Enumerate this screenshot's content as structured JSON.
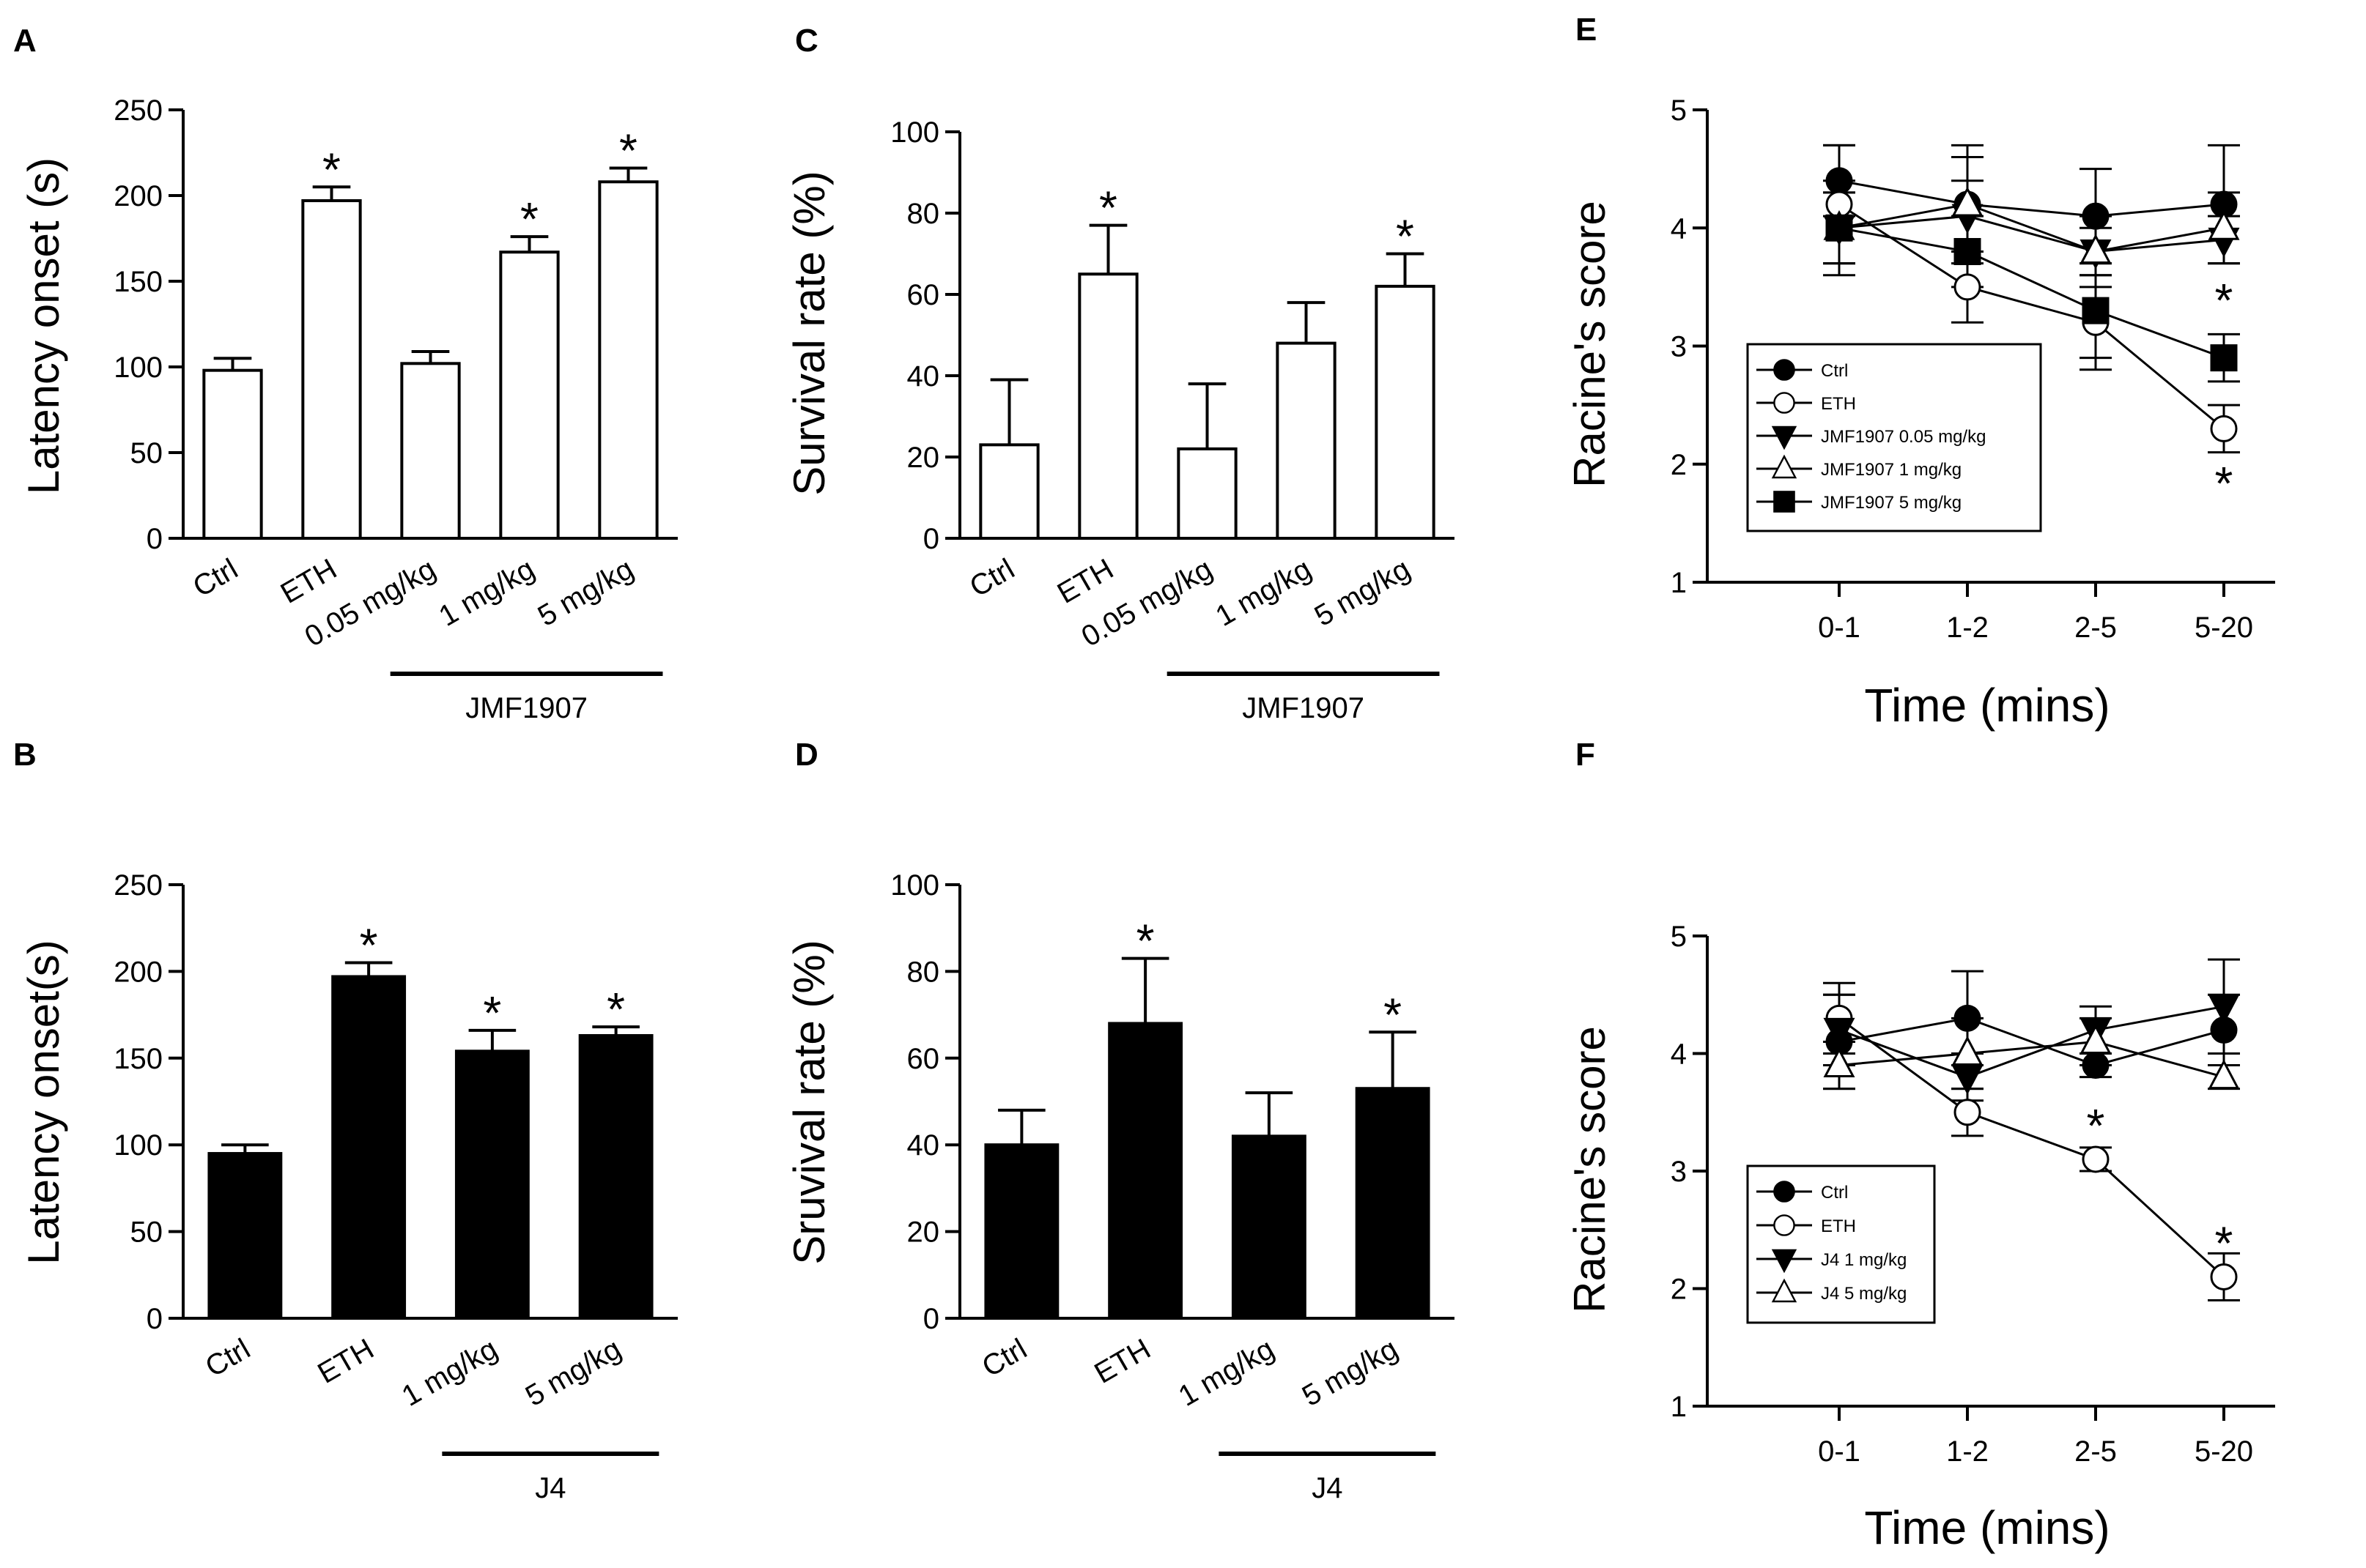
{
  "chart_data": [
    {
      "panel": "A",
      "type": "bar",
      "ylabel": "Latency onset (s)",
      "ylim": [
        0,
        250
      ],
      "yticks": [
        0,
        50,
        100,
        150,
        200,
        250
      ],
      "categories": [
        "Ctrl",
        "ETH",
        "0.05 mg/kg",
        "1 mg/kg",
        "5 mg/kg"
      ],
      "values": [
        98,
        197,
        102,
        167,
        208
      ],
      "errors": [
        7,
        8,
        7,
        9,
        8
      ],
      "significant": [
        false,
        true,
        false,
        true,
        true
      ],
      "group_label": "JMF1907",
      "group_span": [
        2,
        4
      ],
      "fill": "#ffffff"
    },
    {
      "panel": "B",
      "type": "bar",
      "ylabel": "Latency onset(s)",
      "ylim": [
        0,
        250
      ],
      "yticks": [
        0,
        50,
        100,
        150,
        200,
        250
      ],
      "categories": [
        "Ctrl",
        "ETH",
        "1 mg/kg",
        "5 mg/kg"
      ],
      "values": [
        95,
        197,
        154,
        163
      ],
      "errors": [
        5,
        8,
        12,
        5
      ],
      "significant": [
        false,
        true,
        true,
        true
      ],
      "group_label": "J4",
      "group_span": [
        2,
        3
      ],
      "fill": "#000000"
    },
    {
      "panel": "C",
      "type": "bar",
      "ylabel": "Survival rate (%)",
      "ylim": [
        0,
        100
      ],
      "yticks": [
        0,
        20,
        40,
        60,
        80,
        100
      ],
      "categories": [
        "Ctrl",
        "ETH",
        "0.05 mg/kg",
        "1 mg/kg",
        "5 mg/kg"
      ],
      "values": [
        23,
        65,
        22,
        48,
        62
      ],
      "errors": [
        16,
        12,
        16,
        10,
        8
      ],
      "significant": [
        false,
        true,
        false,
        false,
        true
      ],
      "group_label": "JMF1907",
      "group_span": [
        2,
        4
      ],
      "fill": "#ffffff"
    },
    {
      "panel": "D",
      "type": "bar",
      "ylabel": "Sruvival rate (%)",
      "ylim": [
        0,
        100
      ],
      "yticks": [
        0,
        20,
        40,
        60,
        80,
        100
      ],
      "categories": [
        "Ctrl",
        "ETH",
        "1 mg/kg",
        "5 mg/kg"
      ],
      "values": [
        40,
        68,
        42,
        53
      ],
      "errors": [
        8,
        15,
        10,
        13
      ],
      "significant": [
        false,
        true,
        false,
        true
      ],
      "group_label": "J4",
      "group_span": [
        2,
        3
      ],
      "fill": "#000000"
    },
    {
      "panel": "E",
      "type": "line",
      "ylabel": "Racine's score",
      "xlabel": "Time (mins)",
      "ylim": [
        1,
        5
      ],
      "yticks": [
        1,
        2,
        3,
        4,
        5
      ],
      "x": [
        "0-1",
        "1-2",
        "2-5",
        "5-20"
      ],
      "series": [
        {
          "name": "Ctrl",
          "marker": "circle-filled",
          "values": [
            4.4,
            4.2,
            4.1,
            4.2
          ],
          "errors": [
            0.3,
            0.5,
            0.4,
            0.5
          ]
        },
        {
          "name": "ETH",
          "marker": "circle-open",
          "values": [
            4.2,
            3.5,
            3.2,
            2.3
          ],
          "errors": [
            0.5,
            0.3,
            0.4,
            0.2
          ]
        },
        {
          "name": "JMF1907 0.05 mg/kg",
          "marker": "triangle-down-filled",
          "values": [
            4.0,
            4.1,
            3.8,
            3.9
          ],
          "errors": [
            0.4,
            0.3,
            0.3,
            0.2
          ]
        },
        {
          "name": "JMF1907 1 mg/kg",
          "marker": "triangle-up-open",
          "values": [
            4.0,
            4.2,
            3.8,
            4.0
          ],
          "errors": [
            0.3,
            0.4,
            0.2,
            0.3
          ]
        },
        {
          "name": "JMF1907 5 mg/kg",
          "marker": "square-filled",
          "values": [
            4.0,
            3.8,
            3.3,
            2.9
          ],
          "errors": [
            0.3,
            0.3,
            0.4,
            0.2
          ]
        }
      ],
      "annotations": [
        {
          "x": "5-20",
          "y": 3.4,
          "text": "*"
        },
        {
          "x": "5-20",
          "y": 1.85,
          "text": "*"
        }
      ]
    },
    {
      "panel": "F",
      "type": "line",
      "ylabel": "Racine's score",
      "xlabel": "Time (mins)",
      "ylim": [
        1,
        5
      ],
      "yticks": [
        1,
        2,
        3,
        4,
        5
      ],
      "x": [
        "0-1",
        "1-2",
        "2-5",
        "5-20"
      ],
      "series": [
        {
          "name": "Ctrl",
          "marker": "circle-filled",
          "values": [
            4.1,
            4.3,
            3.9,
            4.2
          ],
          "errors": [
            0.4,
            0.4,
            0.1,
            0.3
          ]
        },
        {
          "name": "ETH",
          "marker": "circle-open",
          "values": [
            4.3,
            3.5,
            3.1,
            2.1
          ],
          "errors": [
            0.3,
            0.2,
            0.1,
            0.2
          ]
        },
        {
          "name": "J4 1 mg/kg",
          "marker": "triangle-down-filled",
          "values": [
            4.2,
            3.8,
            4.2,
            4.4
          ],
          "errors": [
            0.3,
            0.2,
            0.2,
            0.4
          ]
        },
        {
          "name": "J4 5 mg/kg",
          "marker": "triangle-up-open",
          "values": [
            3.9,
            4.0,
            4.1,
            3.8
          ],
          "errors": [
            0.2,
            0.3,
            0.2,
            0.1
          ]
        }
      ],
      "annotations": [
        {
          "x": "2-5",
          "y": 3.4,
          "text": "*"
        },
        {
          "x": "5-20",
          "y": 2.4,
          "text": "*"
        }
      ]
    }
  ]
}
